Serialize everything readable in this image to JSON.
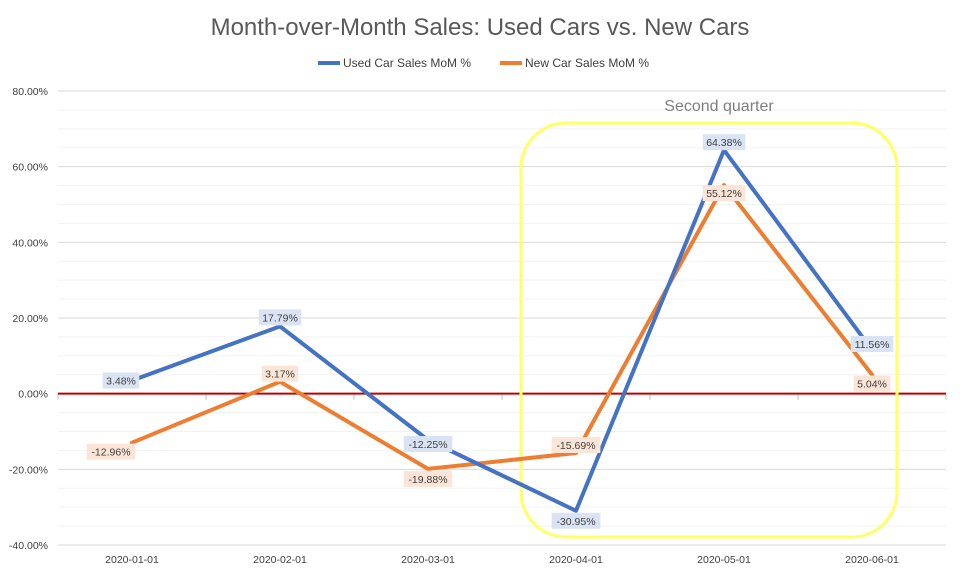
{
  "chart_data": {
    "type": "line",
    "title": "Month-over-Month Sales: Used Cars vs. New Cars",
    "xlabel": "",
    "ylabel": "",
    "categories": [
      "2020-01-01",
      "2020-02-01",
      "2020-03-01",
      "2020-04-01",
      "2020-05-01",
      "2020-06-01"
    ],
    "ylim": [
      -40,
      80
    ],
    "ytick_step": 20,
    "minor_grid_step": 5,
    "ytick_labels": [
      "80.00%",
      "60.00%",
      "40.00%",
      "20.00%",
      "0.00%",
      "-20.00%",
      "-40.00%"
    ],
    "grid": true,
    "legend_position": "top-center",
    "series": [
      {
        "name": "Used Car Sales MoM %",
        "color": "#4472C4",
        "label_bg": "#DAE3F3",
        "values": [
          3.48,
          17.79,
          -12.25,
          -30.95,
          64.38,
          11.56
        ],
        "labels": [
          "3.48%",
          "17.79%",
          "-12.25%",
          "-30.95%",
          "64.38%",
          "11.56%"
        ]
      },
      {
        "name": "New Car Sales MoM %",
        "color": "#ED7D31",
        "label_bg": "#FBE5D6",
        "values": [
          -12.96,
          3.17,
          -19.88,
          -15.69,
          55.12,
          5.04
        ],
        "labels": [
          "-12.96%",
          "3.17%",
          "-19.88%",
          "-15.69%",
          "55.12%",
          "5.04%"
        ]
      }
    ],
    "zero_line_color": "#C00000",
    "annotation": {
      "text": "Second quarter",
      "color": "#FFFF66",
      "spans_categories": [
        "2020-04-01",
        "2020-06-01"
      ]
    }
  }
}
